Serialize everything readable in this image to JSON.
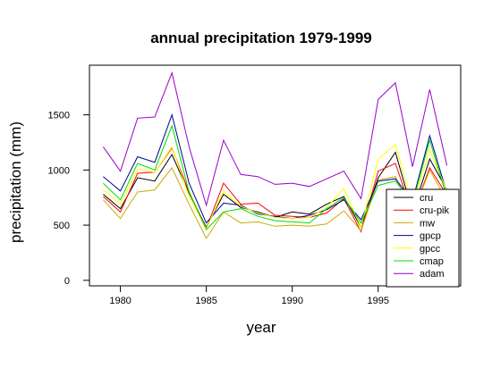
{
  "chart_data": {
    "type": "line",
    "title": "annual precipitation 1979-1999",
    "xlabel": "year",
    "ylabel": "precipitation (mm)",
    "x": [
      1979,
      1980,
      1981,
      1982,
      1983,
      1984,
      1985,
      1986,
      1987,
      1988,
      1989,
      1990,
      1991,
      1992,
      1993,
      1994,
      1995,
      1996,
      1997,
      1998,
      1999
    ],
    "xlim": [
      1978.2,
      1999.8
    ],
    "ylim": [
      -50,
      1950
    ],
    "xticks": [
      1980,
      1985,
      1990,
      1995
    ],
    "yticks": [
      0,
      500,
      1000,
      1500
    ],
    "grid": false,
    "legend_position": "bottom-right",
    "series": [
      {
        "name": "cru",
        "color": "#000000",
        "values": [
          780,
          650,
          930,
          900,
          1140,
          790,
          480,
          780,
          660,
          620,
          570,
          620,
          600,
          690,
          760,
          480,
          930,
          1160,
          620,
          1100,
          820
        ]
      },
      {
        "name": "cru-pik",
        "color": "#ff0000",
        "values": [
          760,
          620,
          970,
          980,
          1200,
          800,
          470,
          880,
          690,
          700,
          590,
          580,
          570,
          610,
          740,
          440,
          990,
          1060,
          600,
          1020,
          770
        ]
      },
      {
        "name": "mw",
        "color": "#ccaa00",
        "values": [
          730,
          560,
          800,
          820,
          1020,
          690,
          380,
          620,
          520,
          530,
          490,
          500,
          490,
          510,
          630,
          450,
          910,
          940,
          600,
          1000,
          720
        ]
      },
      {
        "name": "gpcp",
        "color": "#000099",
        "values": [
          940,
          810,
          1120,
          1070,
          1500,
          880,
          520,
          700,
          680,
          600,
          580,
          560,
          590,
          640,
          730,
          550,
          900,
          920,
          720,
          1310,
          790
        ]
      },
      {
        "name": "gpcc",
        "color": "#ffff00",
        "values": [
          820,
          690,
          1010,
          980,
          1210,
          760,
          470,
          810,
          670,
          610,
          570,
          560,
          570,
          660,
          830,
          480,
          1100,
          1230,
          680,
          1180,
          810
        ]
      },
      {
        "name": "cmap",
        "color": "#00dd00",
        "values": [
          880,
          730,
          1060,
          1000,
          1400,
          800,
          460,
          620,
          650,
          580,
          540,
          530,
          520,
          650,
          750,
          520,
          860,
          900,
          700,
          1270,
          750
        ]
      },
      {
        "name": "adam",
        "color": "#9900cc",
        "values": [
          1210,
          990,
          1470,
          1480,
          1880,
          1210,
          680,
          1270,
          960,
          940,
          870,
          880,
          850,
          920,
          990,
          740,
          1640,
          1790,
          1030,
          1730,
          1040
        ]
      }
    ]
  }
}
